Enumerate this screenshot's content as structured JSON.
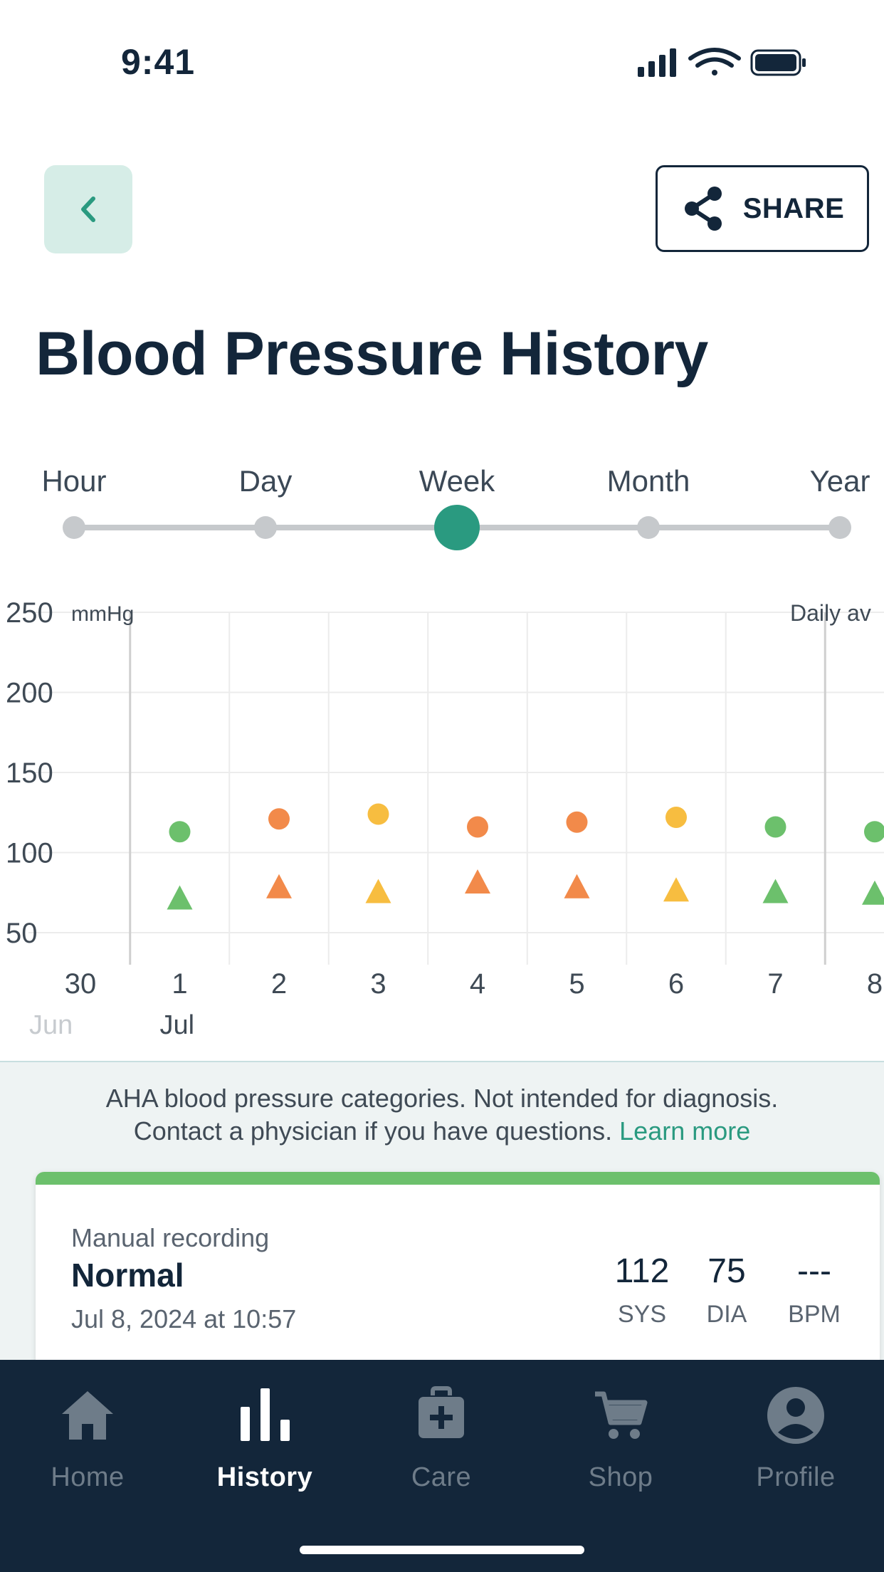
{
  "status_bar": {
    "time": "9:41"
  },
  "header": {
    "share_label": "SHARE",
    "title": "Blood Pressure History"
  },
  "range_selector": {
    "options": [
      "Hour",
      "Day",
      "Week",
      "Month",
      "Year"
    ],
    "selected": "Week"
  },
  "chart_data": {
    "type": "scatter",
    "ylabel": "mmHg",
    "corner_label": "Daily av",
    "ylim": [
      30,
      250
    ],
    "yticks": [
      250,
      200,
      150,
      100,
      50
    ],
    "x_ticks": [
      "30",
      "1",
      "2",
      "3",
      "4",
      "5",
      "6",
      "7",
      "8"
    ],
    "month_labels": [
      {
        "at": "30",
        "label": "Jun"
      },
      {
        "at": "1",
        "label": "Jul"
      }
    ],
    "series": [
      {
        "name": "SYS",
        "marker": "circle",
        "x": [
          "1",
          "2",
          "3",
          "4",
          "5",
          "6",
          "7",
          "8"
        ],
        "values": [
          113,
          121,
          124,
          116,
          119,
          122,
          116,
          113
        ]
      },
      {
        "name": "DIA",
        "marker": "triangle",
        "x": [
          "1",
          "2",
          "3",
          "4",
          "5",
          "6",
          "7",
          "8"
        ],
        "values": [
          72,
          79,
          76,
          82,
          79,
          77,
          76,
          75
        ]
      }
    ],
    "point_categories": [
      "normal",
      "stage1",
      "elevated",
      "stage1",
      "stage1",
      "elevated",
      "normal",
      "normal"
    ],
    "category_colors": {
      "normal": "#6cc06c",
      "elevated": "#f7bd40",
      "stage1": "#f28a4a"
    }
  },
  "info": {
    "line1": "AHA blood pressure categories. Not intended for diagnosis.",
    "line2": "Contact a physician if you have questions.",
    "learn_more": "Learn more"
  },
  "reading_card": {
    "type": "Manual recording",
    "status": "Normal",
    "date": "Jul 8, 2024 at 10:57",
    "status_color": "#6cc06c",
    "metrics": [
      {
        "value": "112",
        "unit": "SYS"
      },
      {
        "value": "75",
        "unit": "DIA"
      },
      {
        "value": "---",
        "unit": "BPM"
      }
    ]
  },
  "nav": {
    "items": [
      {
        "label": "Home",
        "icon": "home-icon"
      },
      {
        "label": "History",
        "icon": "history-icon"
      },
      {
        "label": "Care",
        "icon": "care-icon"
      },
      {
        "label": "Shop",
        "icon": "shop-icon"
      },
      {
        "label": "Profile",
        "icon": "profile-icon"
      }
    ],
    "active": "History"
  }
}
